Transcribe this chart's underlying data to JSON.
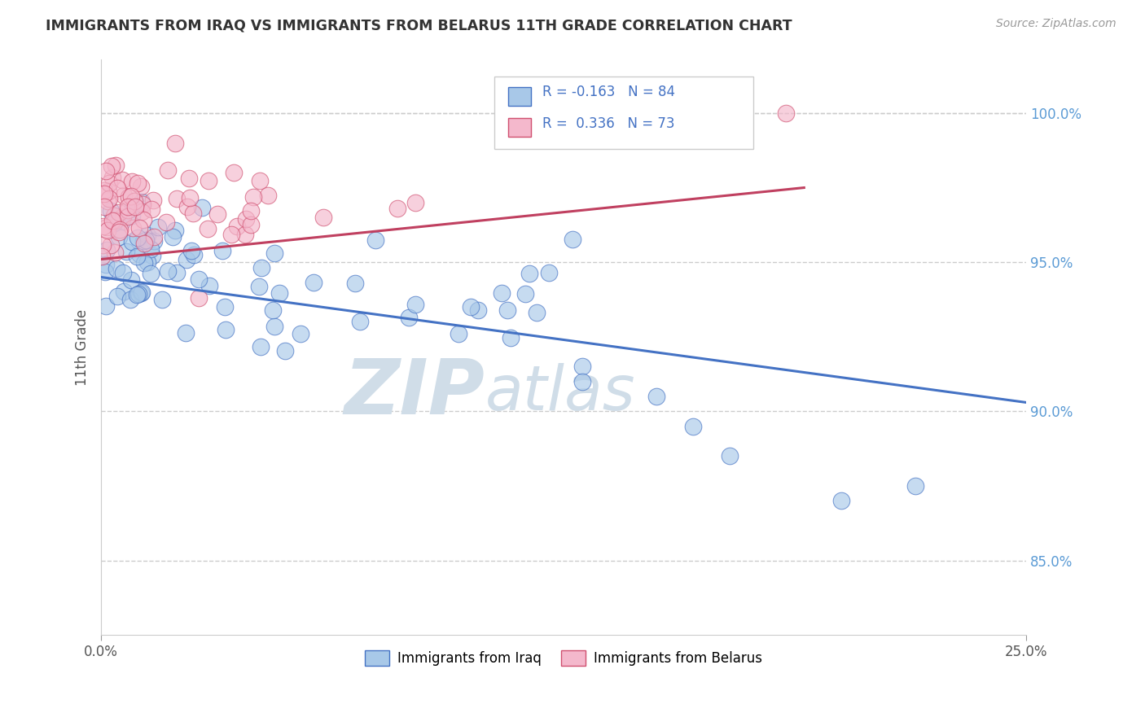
{
  "title": "IMMIGRANTS FROM IRAQ VS IMMIGRANTS FROM BELARUS 11TH GRADE CORRELATION CHART",
  "source": "Source: ZipAtlas.com",
  "ylabel": "11th Grade",
  "xmin": 0.0,
  "xmax": 0.25,
  "ymin": 82.5,
  "ymax": 101.8,
  "legend_r_iraq": "-0.163",
  "legend_n_iraq": "84",
  "legend_r_belarus": "0.336",
  "legend_n_belarus": "73",
  "legend_label_iraq": "Immigrants from Iraq",
  "legend_label_belarus": "Immigrants from Belarus",
  "color_iraq": "#a8c8e8",
  "color_iraq_edge": "#4472c4",
  "color_belarus": "#f4b8cc",
  "color_belarus_edge": "#d05070",
  "color_iraq_line": "#4472c4",
  "color_belarus_line": "#c04060",
  "watermark_zip": "ZIP",
  "watermark_atlas": "atlas",
  "watermark_color": "#d0dde8",
  "iraq_line_x0": 0.0,
  "iraq_line_y0": 94.5,
  "iraq_line_x1": 0.25,
  "iraq_line_y1": 90.3,
  "belarus_line_x0": 0.0,
  "belarus_line_y0": 95.1,
  "belarus_line_x1": 0.19,
  "belarus_line_y1": 97.5,
  "ytick_vals": [
    85.0,
    90.0,
    95.0,
    100.0
  ],
  "ytick_labels": [
    "85.0%",
    "90.0%",
    "95.0%",
    "100.0%"
  ],
  "grid_color": "#cccccc",
  "grid_style": "--"
}
